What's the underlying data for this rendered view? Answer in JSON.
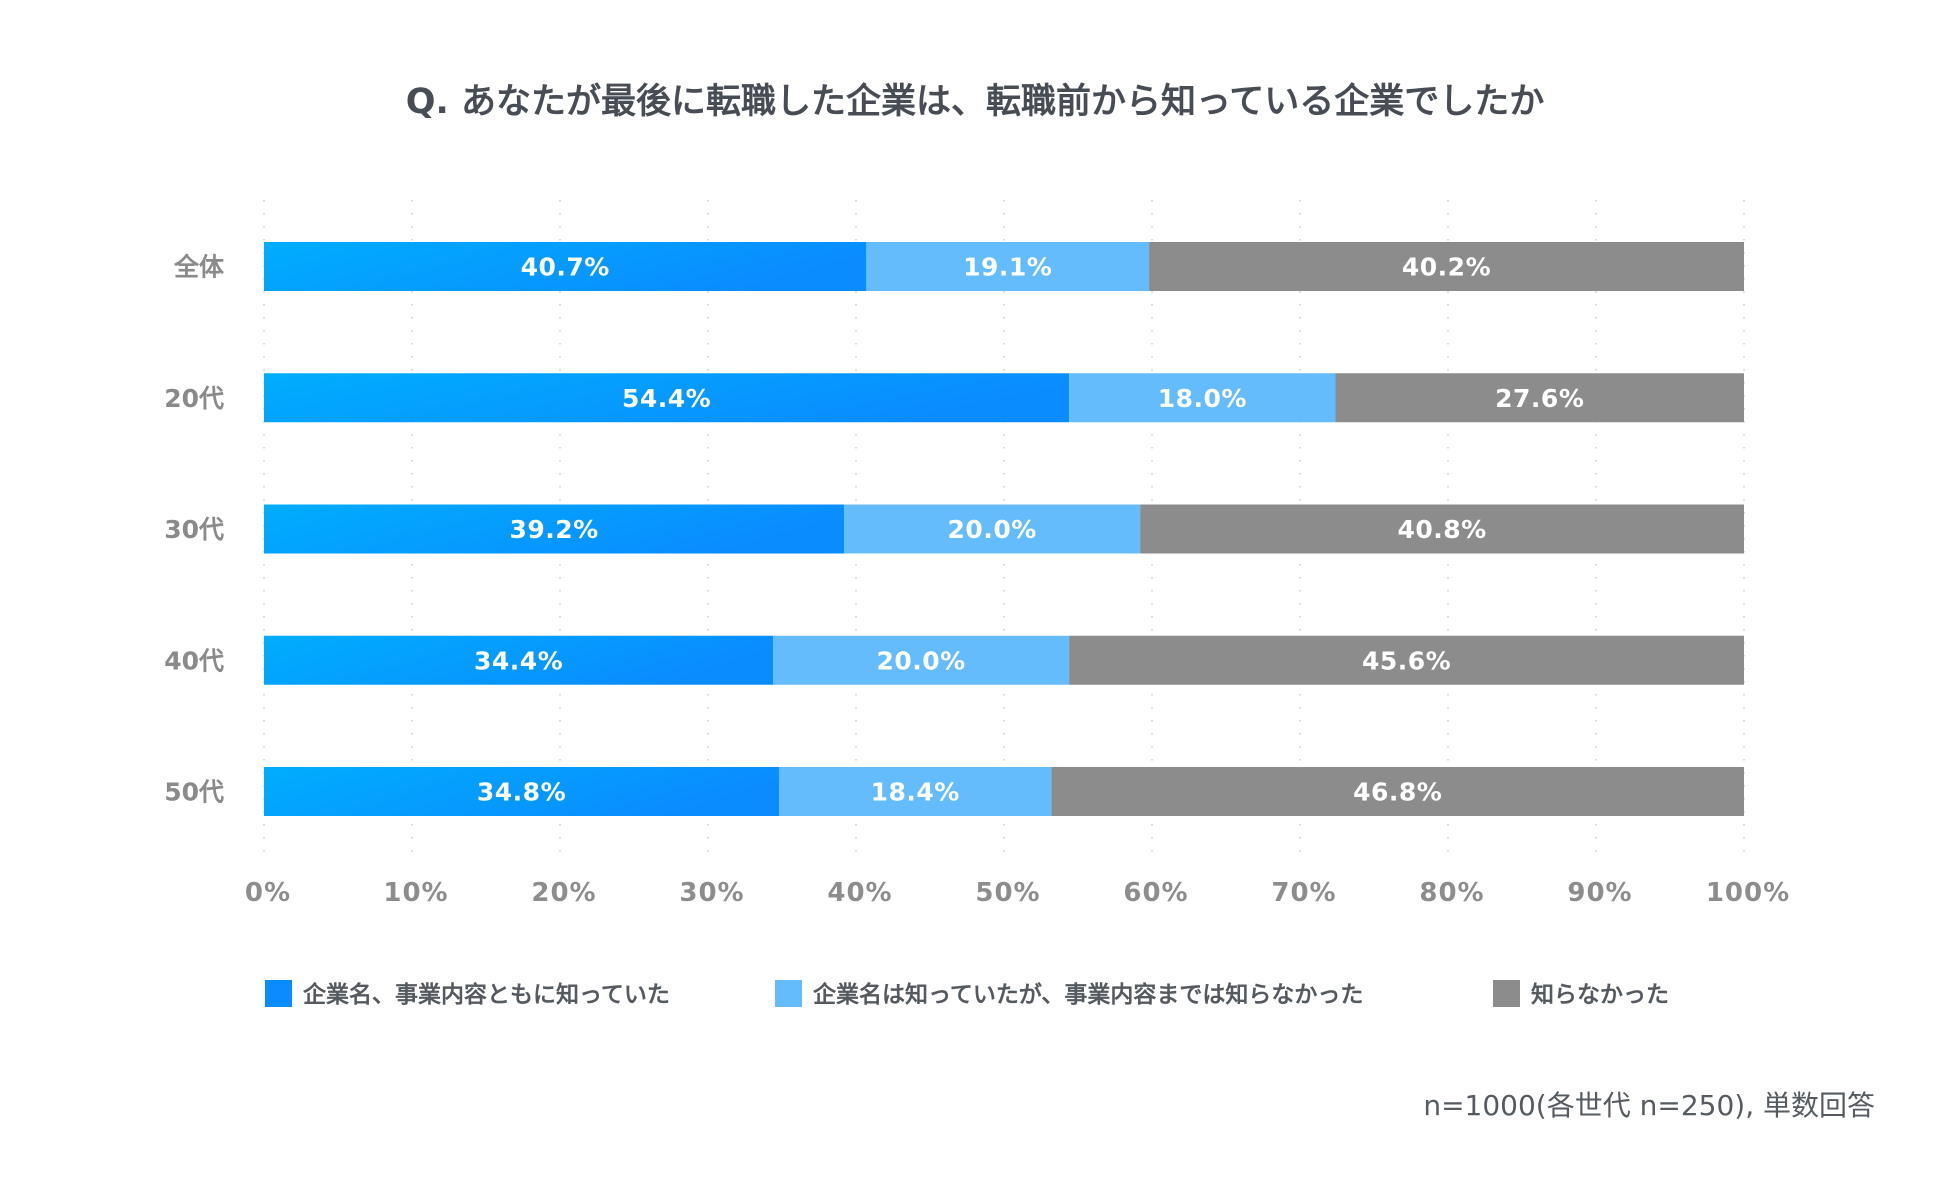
{
  "chart_data": {
    "type": "bar",
    "orientation": "horizontal",
    "stacked": true,
    "title": "Q. あなたが最後に転職した企業は、転職前から知っている企業でしたか",
    "categories": [
      "全体",
      "20代",
      "30代",
      "40代",
      "50代"
    ],
    "series": [
      {
        "name": "企業名、事業内容ともに知っていた",
        "color": "#0a8cff",
        "gradient_start": "#00adfd",
        "values": [
          40.7,
          54.4,
          39.2,
          34.4,
          34.8
        ]
      },
      {
        "name": "企業名は知っていたが、事業内容までは知らなかった",
        "color": "#64bcfd",
        "values": [
          19.1,
          18.0,
          20.0,
          20.0,
          18.4
        ]
      },
      {
        "name": "知らなかった",
        "color": "#8c8c8c",
        "values": [
          40.2,
          27.6,
          40.8,
          45.6,
          46.8
        ]
      }
    ],
    "xlim": [
      0,
      100
    ],
    "xticks": [
      "0%",
      "10%",
      "20%",
      "30%",
      "40%",
      "50%",
      "60%",
      "70%",
      "80%",
      "90%",
      "100%"
    ],
    "xlabel": "",
    "ylabel": "",
    "grid": true,
    "legend_position": "bottom",
    "note": "n=1000(各世代 n=250), 単数回答"
  }
}
